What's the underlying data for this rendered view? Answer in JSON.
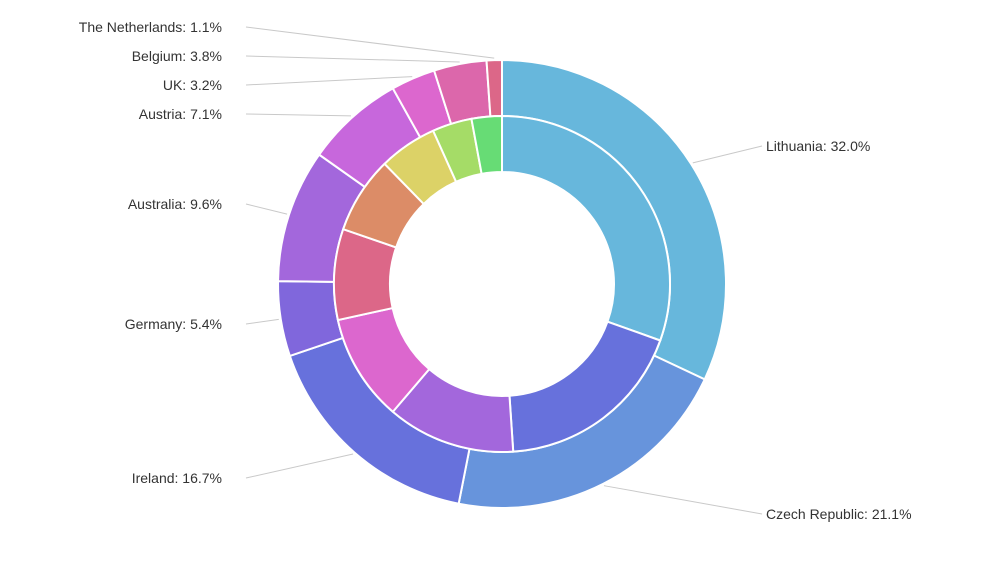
{
  "chart_data": {
    "type": "pie",
    "style": "nested-donut",
    "title": "",
    "series": [
      {
        "ring": "outer",
        "labels": [
          "Lithuania",
          "Czech Republic",
          "Ireland",
          "Germany",
          "Australia",
          "Austria",
          "UK",
          "Belgium",
          "The Netherlands"
        ],
        "values": [
          32.0,
          21.1,
          16.7,
          5.4,
          9.6,
          7.1,
          3.2,
          3.8,
          1.1
        ],
        "label_texts": [
          "Lithuania: 32.0%",
          "Czech Republic: 21.1%",
          "Ireland: 16.7%",
          "Germany: 5.4%",
          "Australia: 9.6%",
          "Austria: 7.1%",
          "UK: 3.2%",
          "Belgium: 3.8%",
          "The Netherlands: 1.1%"
        ],
        "colors": [
          "#67b7dc",
          "#6794dc",
          "#6771dc",
          "#8067dc",
          "#a367dc",
          "#c767dc",
          "#dc67ce",
          "#dc67ab",
          "#dc6788"
        ]
      },
      {
        "ring": "inner",
        "values": [
          27.2,
          16.5,
          11.0,
          9.2,
          7.8,
          6.6,
          5.0,
          3.4,
          2.6
        ],
        "colors": [
          "#67b7dc",
          "#6771dc",
          "#a367dc",
          "#dc67ce",
          "#dc6788",
          "#dc8c67",
          "#dcd267",
          "#a5dc67",
          "#67dc75"
        ]
      }
    ],
    "legend": "none"
  }
}
